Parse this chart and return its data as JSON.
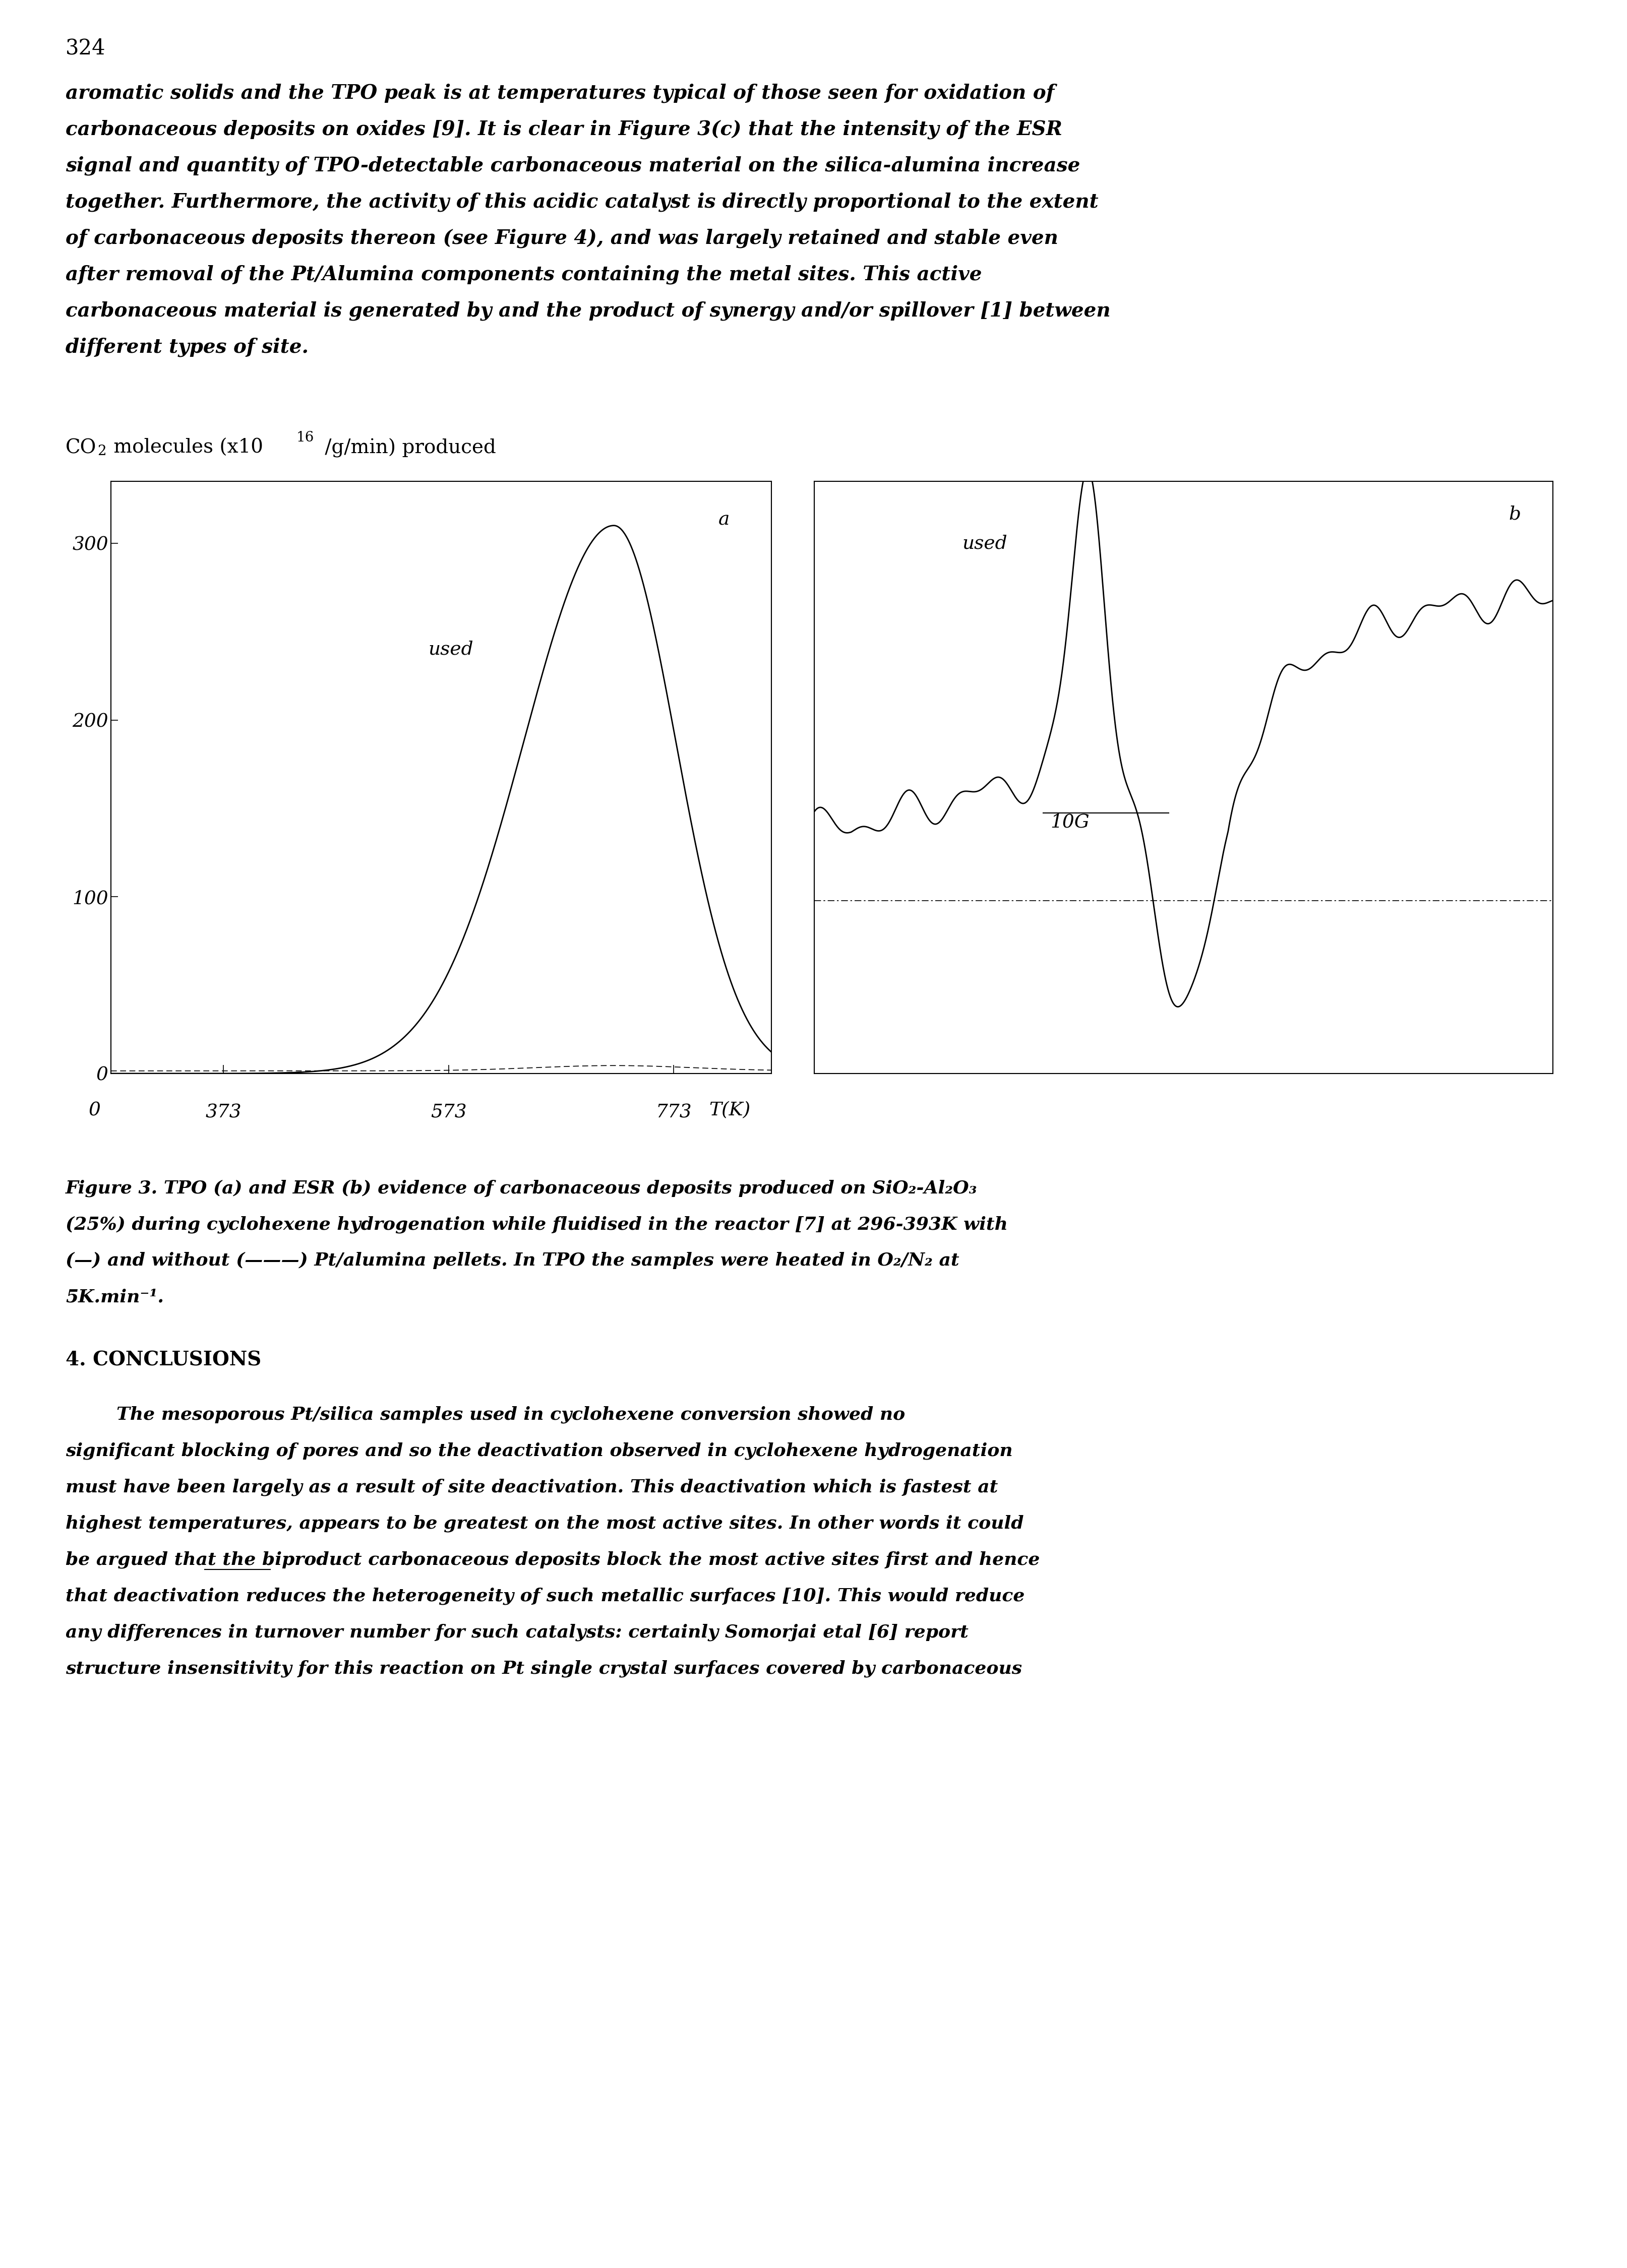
{
  "page_number": "324",
  "para1_lines": [
    "aromatic solids and the TPO peak is at temperatures typical of those seen for oxidation of",
    "carbonaceous deposits on oxides [9]. It is clear in Figure 3(c) that the intensity of the ESR",
    "signal and quantity of TPO-detectable carbonaceous material on the silica-alumina increase",
    "together. Furthermore, the activity of this acidic catalyst is directly proportional to the extent",
    "of carbonaceous deposits thereon (see Figure 4), and was largely retained and stable even",
    "after removal of the Pt/Alumina components containing the metal sites. This active",
    "carbonaceous material is generated by and the product of synergy and/or spillover [1] between",
    "different types of site."
  ],
  "cap_lines": [
    "Figure 3. TPO (a) and ESR (b) evidence of carbonaceous deposits produced on SiO₂-Al₂O₃",
    "(25%) during cyclohexene hydrogenation while fluidised in the reactor [7] at 296-393K with",
    "(—) and without (———) Pt/alumina pellets. In TPO the samples were heated in O₂/N₂ at",
    "5K.min⁻¹."
  ],
  "section_header": "4. CONCLUSIONS",
  "para2_lines": [
    "        The mesoporous Pt/silica samples used in cyclohexene conversion showed no",
    "significant blocking of pores and so the deactivation observed in cyclohexene hydrogenation",
    "must have been largely as a result of site deactivation. This deactivation which is fastest at",
    "highest temperatures, appears to be greatest on the most active sites. In other words it could",
    "be argued that the biproduct carbonaceous deposits block the most active sites first and hence",
    "that deactivation reduces the heterogeneity of such metallic surfaces [10]. This would reduce",
    "any differences in turnover number for such catalysts: certainly Somorjai etal [6] report",
    "structure insensitivity for this reaction on Pt single crystal surfaces covered by carbonaceous"
  ],
  "bg_color": "#ffffff"
}
